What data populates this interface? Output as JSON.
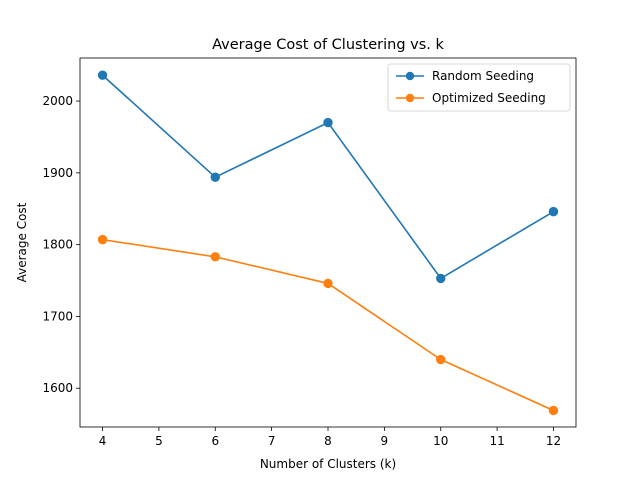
{
  "chart_data": {
    "type": "line",
    "title": "Average Cost of Clustering vs. k",
    "xlabel": "Number of Clusters (k)",
    "ylabel": "Average Cost",
    "x": [
      4,
      6,
      8,
      10,
      12
    ],
    "xlim": [
      3.6,
      12.4
    ],
    "ylim": [
      1546,
      2060
    ],
    "xticks": [
      4,
      5,
      6,
      7,
      8,
      9,
      10,
      11,
      12
    ],
    "yticks": [
      1600,
      1700,
      1800,
      1900,
      2000
    ],
    "grid": false,
    "legend_position": "top-right",
    "series": [
      {
        "name": "Random Seeding",
        "color": "#1f77b4",
        "marker": "circle",
        "values": [
          2036,
          1894,
          1970,
          1753,
          1846
        ]
      },
      {
        "name": "Optimized Seeding",
        "color": "#ff7f0e",
        "marker": "circle",
        "values": [
          1807,
          1783,
          1746,
          1640,
          1569
        ]
      }
    ]
  }
}
